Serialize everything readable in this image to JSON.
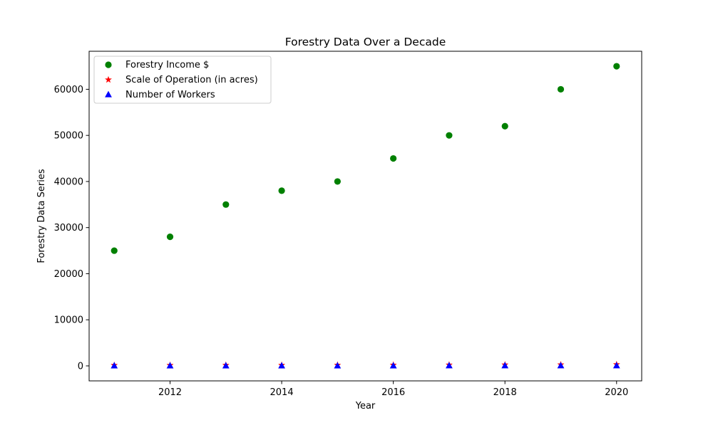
{
  "chart_data": {
    "type": "scatter",
    "title": "Forestry Data Over a Decade",
    "xlabel": "Year",
    "ylabel": "Forestry Data Series",
    "xlim": [
      2010.55,
      2020.45
    ],
    "ylim": [
      -3250,
      68250
    ],
    "x_ticks": [
      2012,
      2014,
      2016,
      2018,
      2020
    ],
    "y_ticks": [
      0,
      10000,
      20000,
      30000,
      40000,
      50000,
      60000
    ],
    "grid": false,
    "legend_position": "upper-left",
    "x": [
      2011,
      2012,
      2013,
      2014,
      2015,
      2016,
      2017,
      2018,
      2019,
      2020
    ],
    "series": [
      {
        "name": "Forestry Income $",
        "marker": "circle",
        "color": "#008000",
        "values": [
          25000,
          28000,
          35000,
          38000,
          40000,
          45000,
          50000,
          52000,
          60000,
          65000
        ]
      },
      {
        "name": "Scale of Operation (in acres)",
        "marker": "star",
        "color": "#ff0000",
        "values": [
          150,
          160,
          170,
          180,
          200,
          210,
          230,
          250,
          270,
          300
        ]
      },
      {
        "name": "Number of Workers",
        "marker": "triangle",
        "color": "#0000ff",
        "values": [
          10,
          12,
          14,
          15,
          16,
          18,
          20,
          22,
          24,
          25
        ]
      }
    ]
  }
}
